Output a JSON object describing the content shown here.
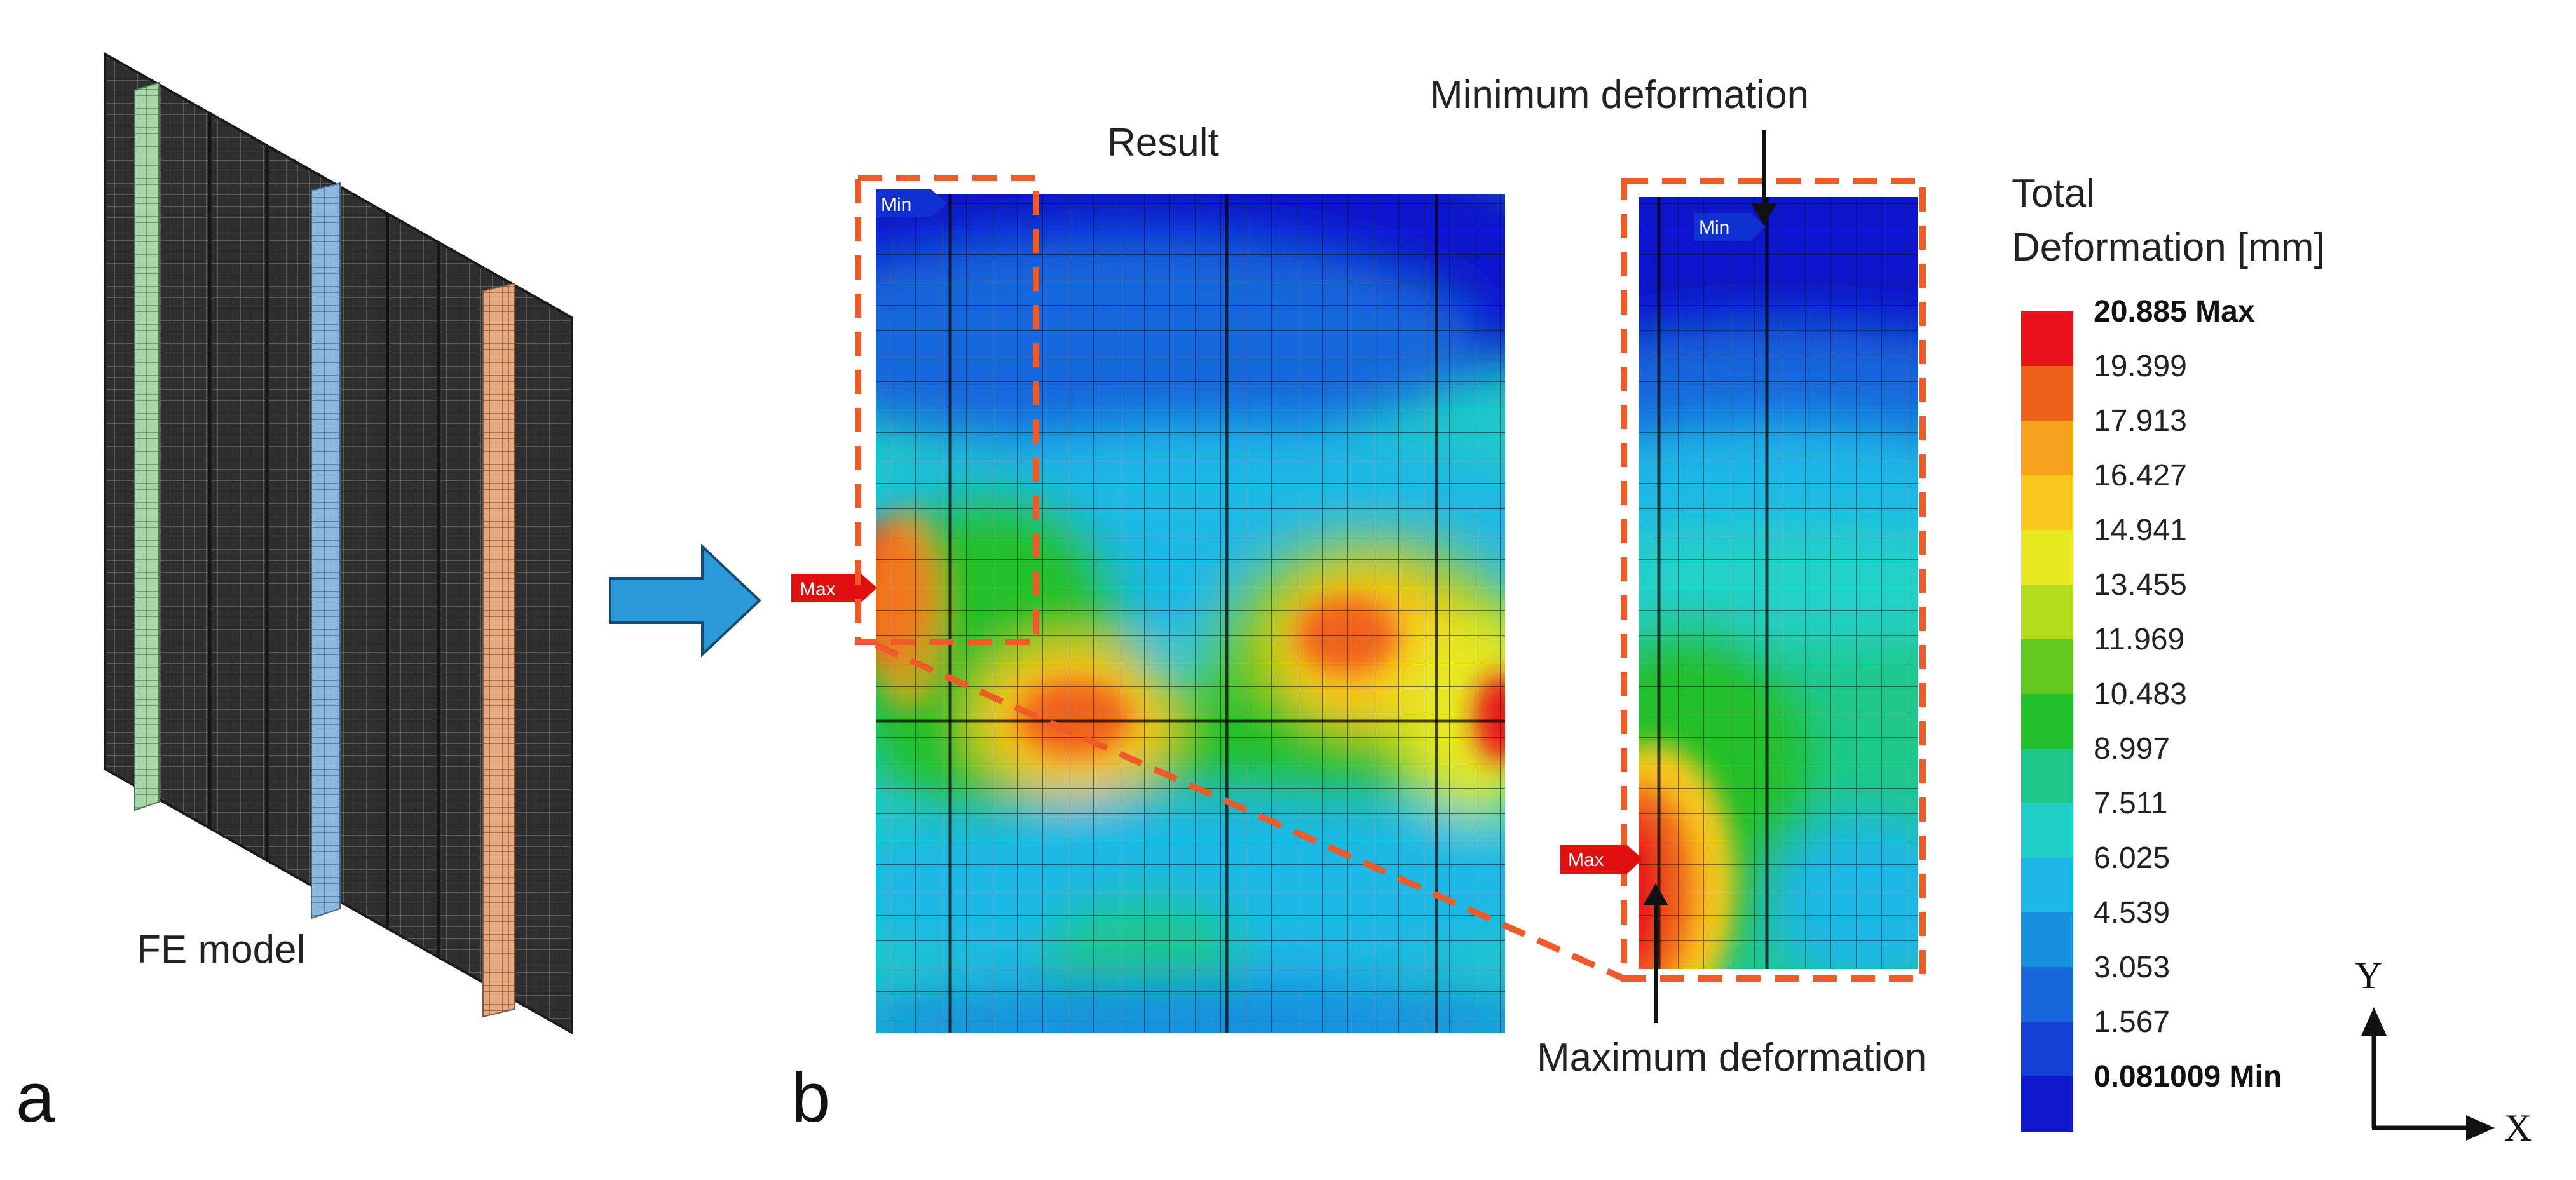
{
  "panels": {
    "a": {
      "letter": "a",
      "label": "FE model"
    },
    "b": {
      "letter": "b",
      "title": "Result"
    }
  },
  "annotations": {
    "minimum": "Minimum deformation",
    "maximum": "Maximum deformation"
  },
  "markers": {
    "min": "Min",
    "max": "Max"
  },
  "legend": {
    "title_line1": "Total",
    "title_line2": "Deformation [mm]",
    "entries": [
      {
        "label": "20.885 Max",
        "color": "#e8121a",
        "bold": true
      },
      {
        "label": "19.399",
        "color": "#f0621a",
        "bold": false
      },
      {
        "label": "17.913",
        "color": "#f6a21c",
        "bold": false
      },
      {
        "label": "16.427",
        "color": "#f8c81e",
        "bold": false
      },
      {
        "label": "14.941",
        "color": "#e6e820",
        "bold": false
      },
      {
        "label": "13.455",
        "color": "#b2dc1c",
        "bold": false
      },
      {
        "label": "11.969",
        "color": "#64c81e",
        "bold": false
      },
      {
        "label": "10.483",
        "color": "#22c02a",
        "bold": false
      },
      {
        "label": "8.997",
        "color": "#1ec88c",
        "bold": false
      },
      {
        "label": "7.511",
        "color": "#20d0c8",
        "bold": false
      },
      {
        "label": "6.025",
        "color": "#1eb8e6",
        "bold": false
      },
      {
        "label": "4.539",
        "color": "#1890e0",
        "bold": false
      },
      {
        "label": "3.053",
        "color": "#1868dc",
        "bold": false
      },
      {
        "label": "1.567",
        "color": "#1440d8",
        "bold": false
      },
      {
        "label": "0.081009 Min",
        "color": "#1018cc",
        "bold": true
      }
    ]
  },
  "axes": {
    "y": "Y",
    "x": "X"
  },
  "colors": {
    "callout": "#f05a28",
    "arrow_fill": "#2a9ad8",
    "max_tag": "#e01010",
    "min_tag": "#1030d0",
    "mesh_dark": "#2a2a2a",
    "stiffener_green": "#a8d8a8",
    "stiffener_blue": "#8cb8e0",
    "stiffener_orange": "#e8a880"
  }
}
